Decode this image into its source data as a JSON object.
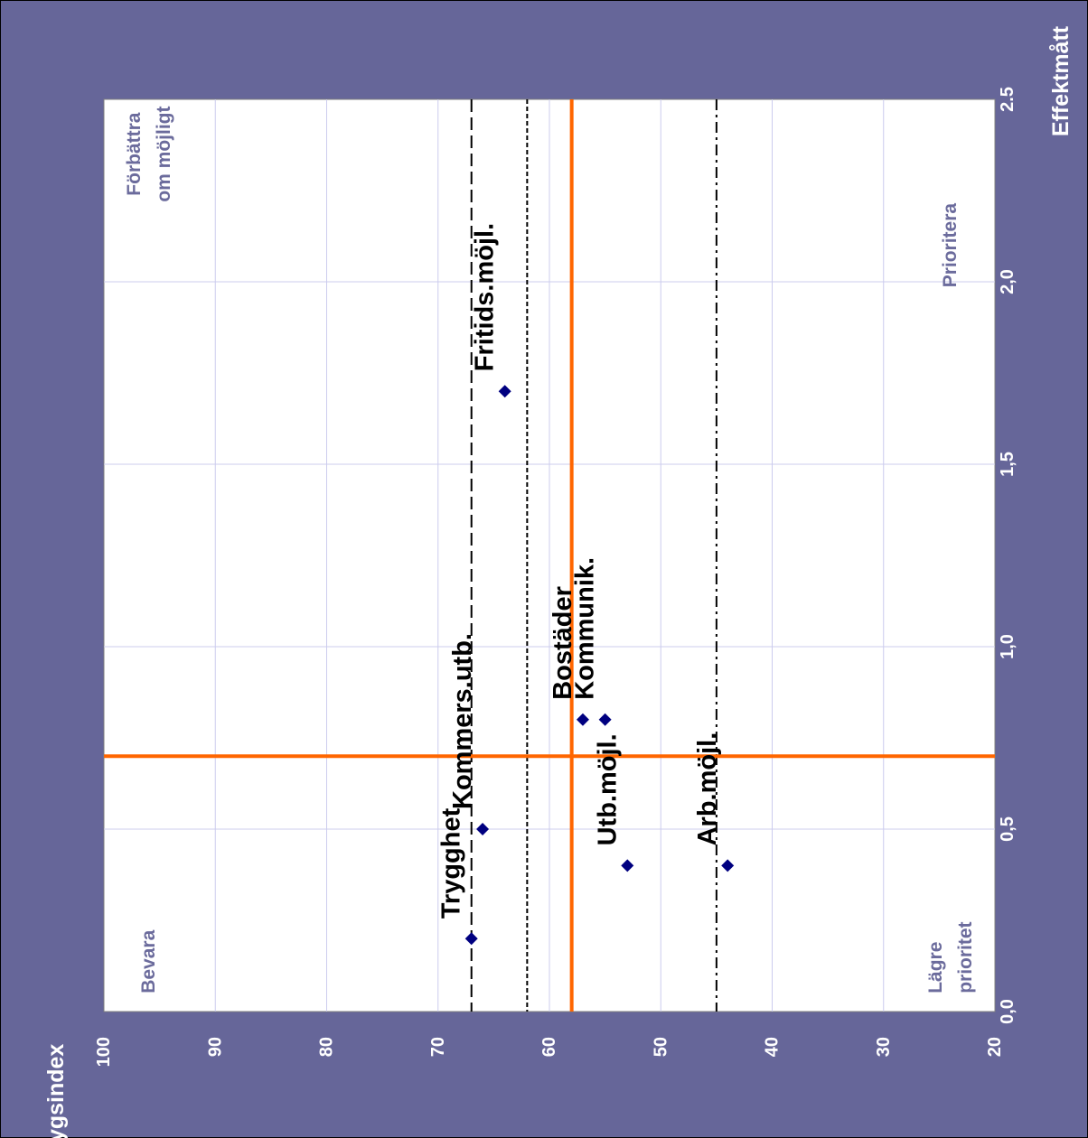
{
  "chart_data": {
    "type": "scatter",
    "xlabel": "Betygsindex",
    "ylabel": "Effektmått",
    "xlim": [
      100,
      20
    ],
    "ylim": [
      0,
      2.5
    ],
    "x_ticks": [
      "100",
      "90",
      "80",
      "70",
      "60",
      "50",
      "40",
      "30",
      "20"
    ],
    "y_ticks": [
      "0,0",
      "0,5",
      "1,0",
      "1,5",
      "2,0",
      "2.5"
    ],
    "grid": true,
    "points": [
      {
        "label": "Trygghet",
        "x": 67,
        "y": 0.2
      },
      {
        "label": "Kommers.utb.",
        "x": 66,
        "y": 0.5
      },
      {
        "label": "Fritids.möjl.",
        "x": 64,
        "y": 1.7
      },
      {
        "label": "Bostäder",
        "x": 57,
        "y": 0.8
      },
      {
        "label": "Kommunik.",
        "x": 55,
        "y": 0.8
      },
      {
        "label": "Utb.möjl.",
        "x": 53,
        "y": 0.4
      },
      {
        "label": "Arb.möjl.",
        "x": 44,
        "y": 0.4
      }
    ],
    "reference_lines": [
      {
        "axis": "x",
        "value": 67,
        "style": "long-dash",
        "color": "#000000"
      },
      {
        "axis": "x",
        "value": 62,
        "style": "short-dash",
        "color": "#000000"
      },
      {
        "axis": "x",
        "value": 58,
        "style": "solid",
        "color": "#ff6600"
      },
      {
        "axis": "x",
        "value": 45,
        "style": "dash-dot",
        "color": "#000000"
      },
      {
        "axis": "y",
        "value": 0.7,
        "style": "solid",
        "color": "#ff6600"
      }
    ],
    "quadrant_labels": [
      {
        "lines": [
          "Förbättra",
          "om möjligt"
        ],
        "x": 96,
        "y": 2.35
      },
      {
        "lines": [
          "Prioritera"
        ],
        "x": 24,
        "y": 2.1
      },
      {
        "lines": [
          "Bevara"
        ],
        "x": 96,
        "y": 0.05
      },
      {
        "lines": [
          "Lägre",
          "prioritet"
        ],
        "x": 24,
        "y": 0.05
      }
    ],
    "colors": {
      "background": "#666699",
      "plot_area": "#ffffff",
      "grid": "#ccccee",
      "marker": "#000080",
      "accent": "#ff6600",
      "quadrant_text": "#6b6b9c"
    }
  }
}
